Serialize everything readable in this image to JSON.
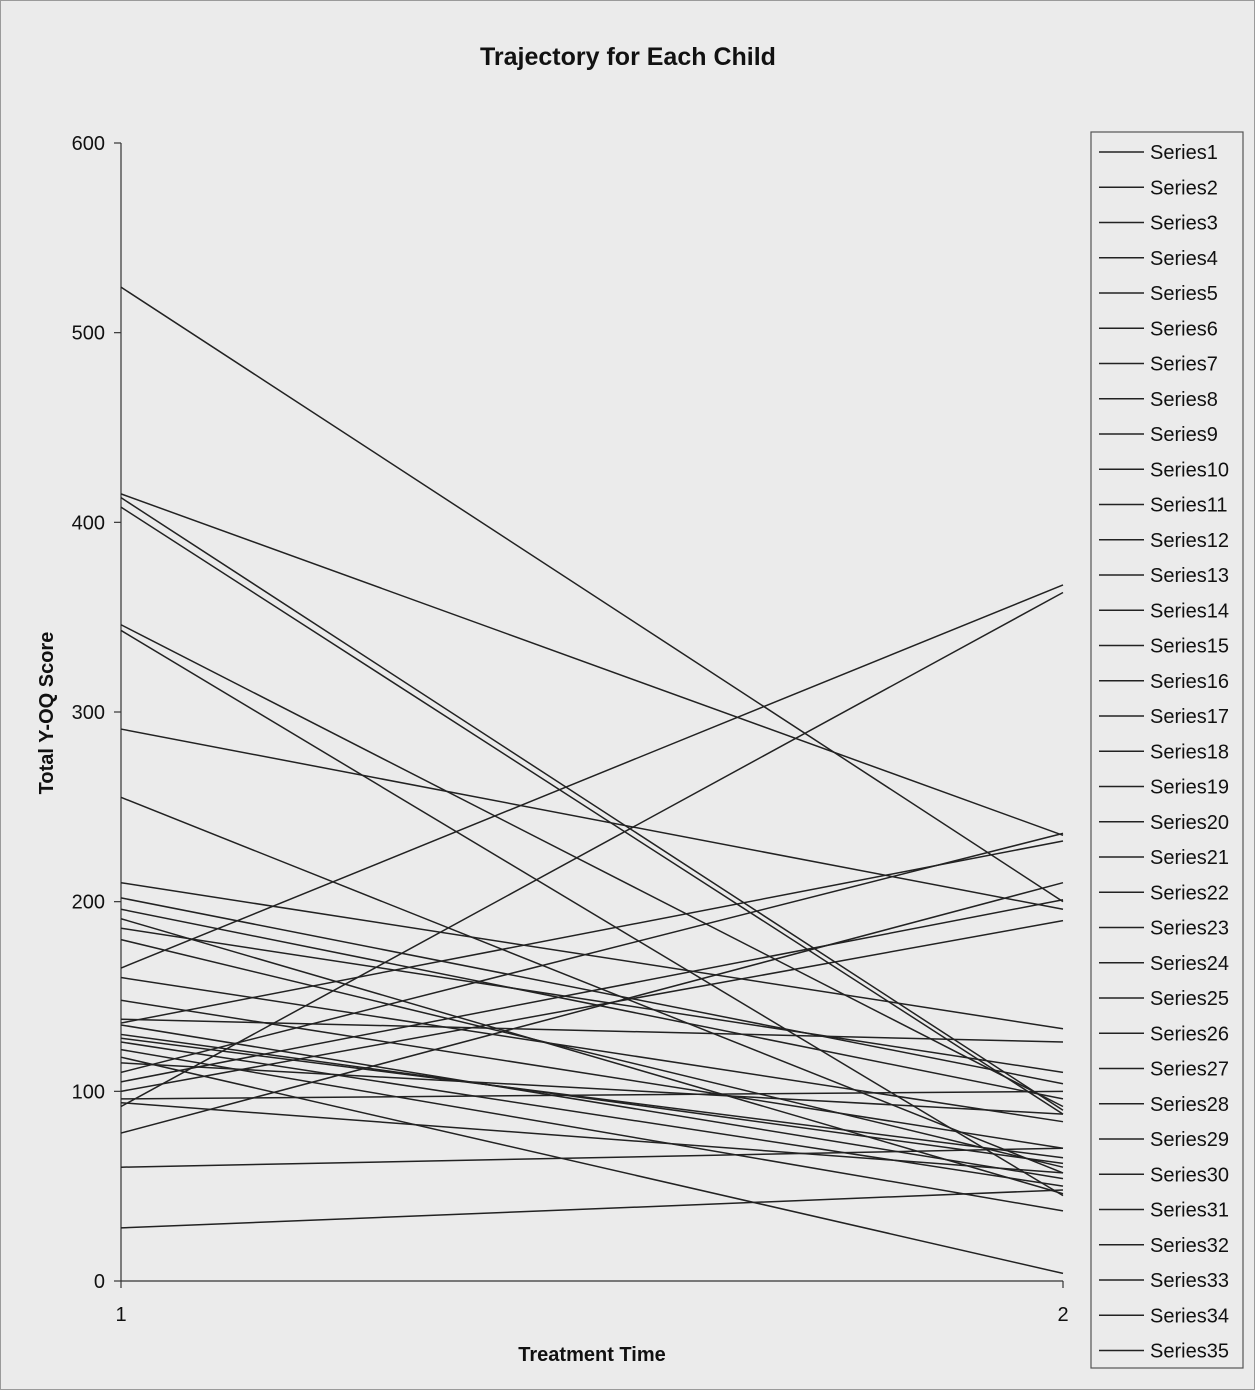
{
  "chart_data": {
    "type": "line",
    "title": "Trajectory for Each Child",
    "xlabel": "Treatment Time",
    "ylabel": "Total Y-OQ Score",
    "x": [
      1,
      2
    ],
    "x_tick_labels": [
      "1",
      "2"
    ],
    "y_tick_labels": [
      "0",
      "100",
      "200",
      "300",
      "400",
      "500",
      "600"
    ],
    "ylim": [
      0,
      600
    ],
    "grid": false,
    "legend_position": "right",
    "line_color": "#222222",
    "series": [
      {
        "name": "Series1",
        "values": [
          524,
          200
        ]
      },
      {
        "name": "Series2",
        "values": [
          415,
          235
        ]
      },
      {
        "name": "Series3",
        "values": [
          413,
          90
        ]
      },
      {
        "name": "Series4",
        "values": [
          408,
          88
        ]
      },
      {
        "name": "Series5",
        "values": [
          346,
          92
        ]
      },
      {
        "name": "Series6",
        "values": [
          343,
          45
        ]
      },
      {
        "name": "Series7",
        "values": [
          291,
          196
        ]
      },
      {
        "name": "Series8",
        "values": [
          255,
          57
        ]
      },
      {
        "name": "Series9",
        "values": [
          210,
          133
        ]
      },
      {
        "name": "Series10",
        "values": [
          202,
          104
        ]
      },
      {
        "name": "Series11",
        "values": [
          196,
          96
        ]
      },
      {
        "name": "Series12",
        "values": [
          191,
          46
        ]
      },
      {
        "name": "Series13",
        "values": [
          186,
          110
        ]
      },
      {
        "name": "Series14",
        "values": [
          180,
          60
        ]
      },
      {
        "name": "Series15",
        "values": [
          165,
          367
        ]
      },
      {
        "name": "Series16",
        "values": [
          160,
          84
        ]
      },
      {
        "name": "Series17",
        "values": [
          148,
          70
        ]
      },
      {
        "name": "Series18",
        "values": [
          138,
          126
        ]
      },
      {
        "name": "Series19",
        "values": [
          136,
          232
        ]
      },
      {
        "name": "Series20",
        "values": [
          135,
          54
        ]
      },
      {
        "name": "Series21",
        "values": [
          130,
          62
        ]
      },
      {
        "name": "Series22",
        "values": [
          128,
          65
        ]
      },
      {
        "name": "Series23",
        "values": [
          126,
          50
        ]
      },
      {
        "name": "Series24",
        "values": [
          122,
          37
        ]
      },
      {
        "name": "Series25",
        "values": [
          118,
          4
        ]
      },
      {
        "name": "Series26",
        "values": [
          115,
          88
        ]
      },
      {
        "name": "Series27",
        "values": [
          110,
          236
        ]
      },
      {
        "name": "Series28",
        "values": [
          105,
          201
        ]
      },
      {
        "name": "Series29",
        "values": [
          100,
          190
        ]
      },
      {
        "name": "Series30",
        "values": [
          96,
          100
        ]
      },
      {
        "name": "Series31",
        "values": [
          94,
          57
        ]
      },
      {
        "name": "Series32",
        "values": [
          92,
          363
        ]
      },
      {
        "name": "Series33",
        "values": [
          78,
          210
        ]
      },
      {
        "name": "Series34",
        "values": [
          60,
          70
        ]
      },
      {
        "name": "Series35",
        "values": [
          28,
          48
        ]
      }
    ]
  }
}
